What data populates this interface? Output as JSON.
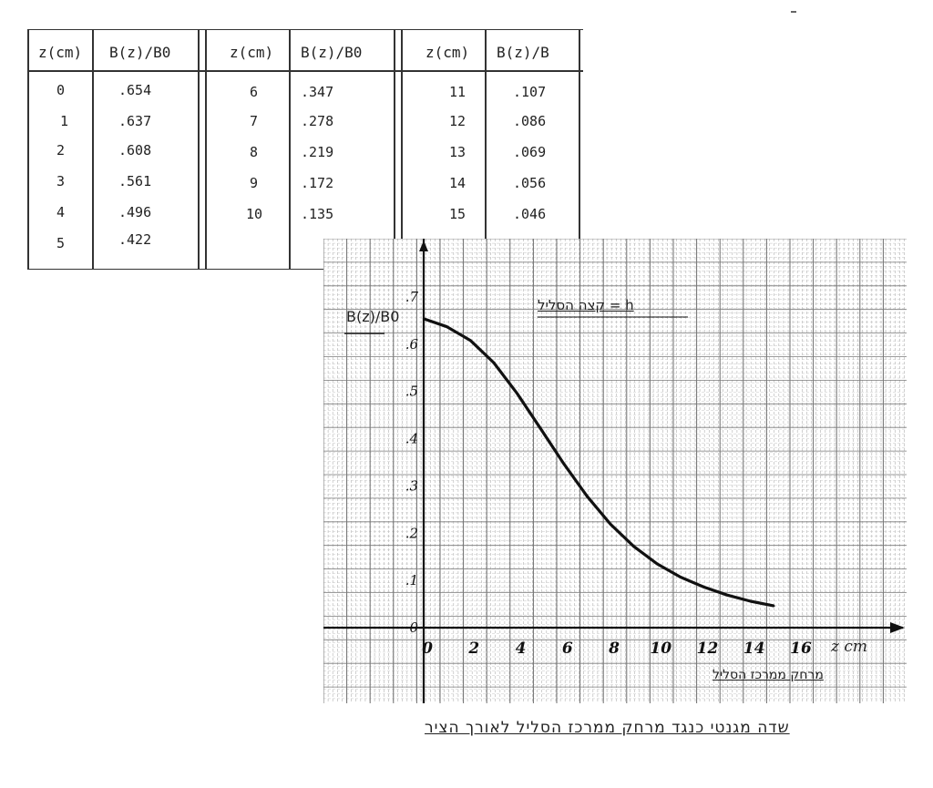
{
  "table": {
    "headers": [
      "z(cm)",
      "B(z)/B0",
      "z(cm)",
      "B(z)/B0",
      "z(cm)",
      "B(z)/B"
    ],
    "rows": [
      [
        "0",
        ".654",
        "6",
        ".347",
        "11",
        ".107"
      ],
      [
        "1",
        ".637",
        "7",
        ".278",
        "12",
        ".086"
      ],
      [
        "2",
        ".608",
        "8",
        ".219",
        "13",
        ".069"
      ],
      [
        "3",
        ".561",
        "9",
        ".172",
        "14",
        ".056"
      ],
      [
        "4",
        ".496",
        "10",
        ".135",
        "15",
        ".046"
      ],
      [
        "5",
        ".422",
        "",
        "",
        "",
        ""
      ]
    ]
  },
  "chart_data": {
    "type": "line",
    "ylabel": "B(z)/B0",
    "xlabel": "z cm",
    "x_axis_name": "מרחק ממרכז הסליל",
    "legend": "h = קצה הסליל",
    "caption": "שדה מגנטי כנגד מרחק ממרכז הסליל לאורך הציר",
    "xlim": [
      0,
      16
    ],
    "ylim": [
      0,
      0.7
    ],
    "x_ticks": [
      "0",
      "2",
      "4",
      "6",
      "8",
      "10",
      "12",
      "14",
      "16"
    ],
    "y_ticks": [
      "0",
      ".1",
      ".2",
      ".3",
      ".4",
      ".5",
      ".6",
      ".7"
    ],
    "grid": true,
    "series": [
      {
        "x": [
          0,
          1,
          2,
          3,
          4,
          5,
          6,
          7,
          8,
          9,
          10,
          11,
          12,
          13,
          14,
          15
        ],
        "values": [
          0.654,
          0.637,
          0.608,
          0.561,
          0.496,
          0.422,
          0.347,
          0.278,
          0.219,
          0.172,
          0.135,
          0.107,
          0.086,
          0.069,
          0.056,
          0.046
        ]
      }
    ]
  }
}
